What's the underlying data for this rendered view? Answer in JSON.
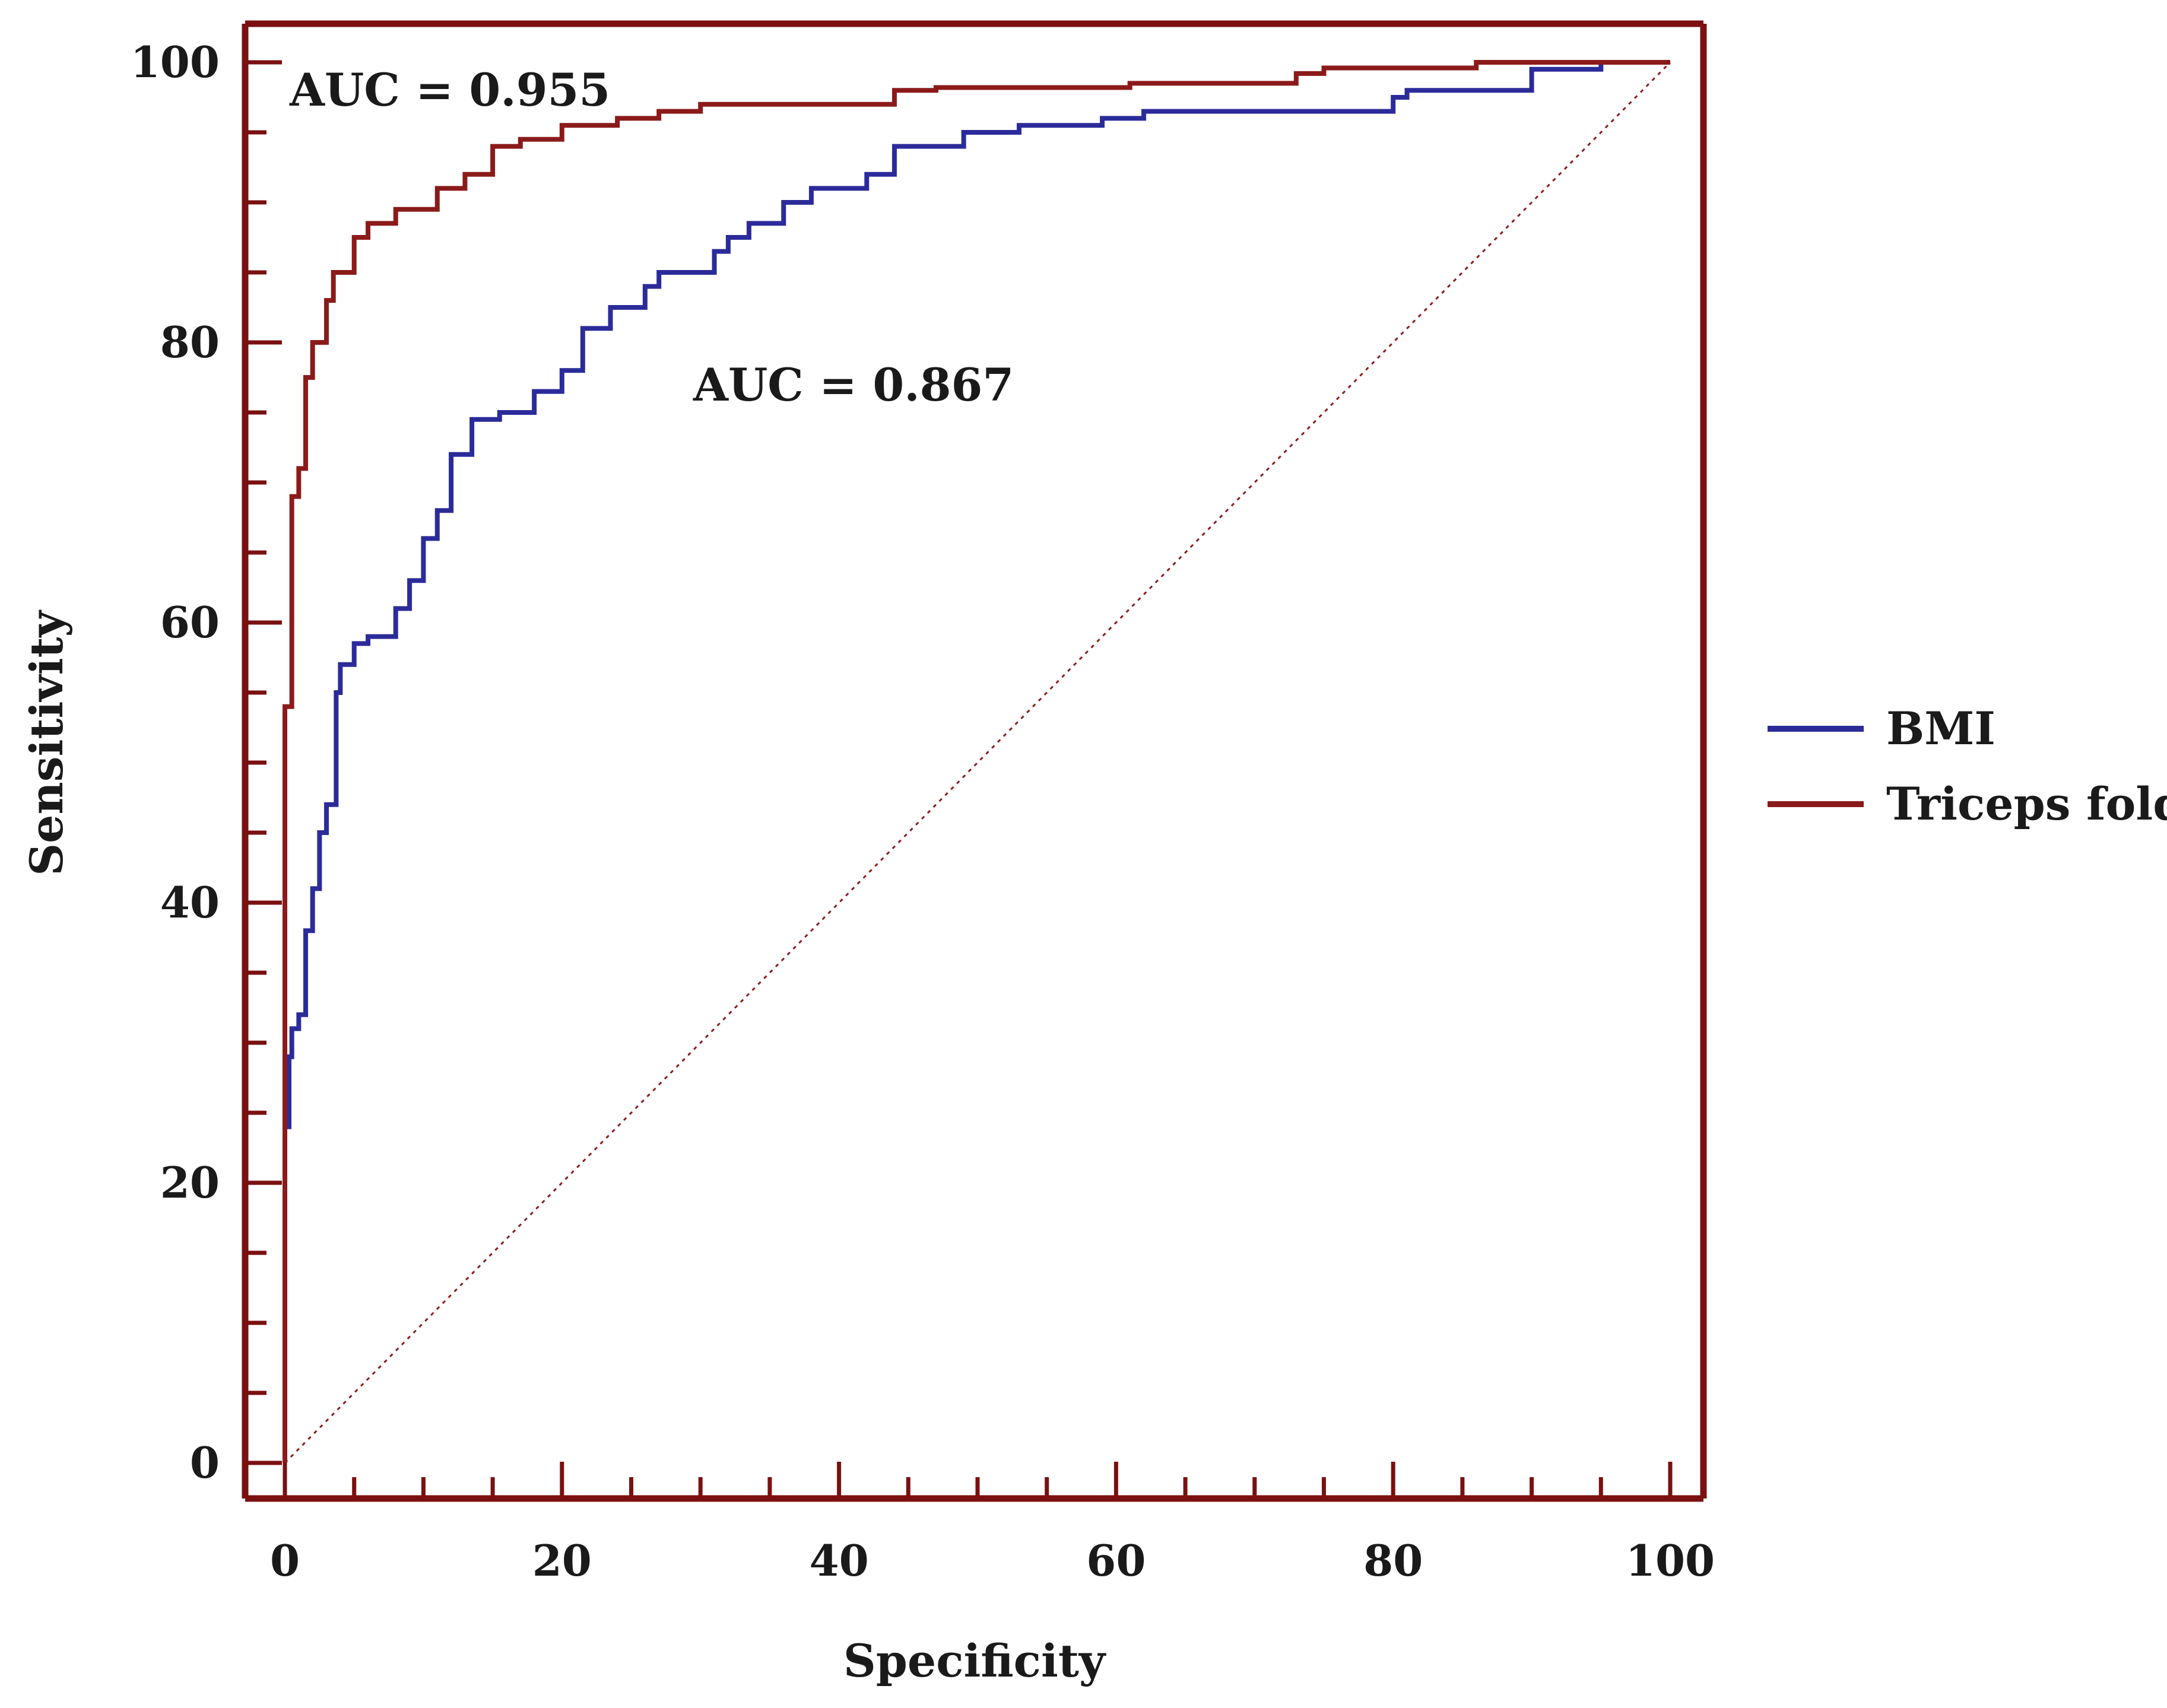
{
  "chart_data": {
    "type": "line",
    "title": "",
    "xlabel": "Specificity",
    "ylabel": "Sensitivity",
    "xlim": [
      0,
      100
    ],
    "ylim": [
      0,
      100
    ],
    "x_ticks": [
      "0",
      "20",
      "40",
      "60",
      "80",
      "100"
    ],
    "y_ticks": [
      "0",
      "20",
      "40",
      "60",
      "80",
      "100"
    ],
    "grid": false,
    "legend_position": "right",
    "reference_line": {
      "type": "diagonal",
      "style": "dotted",
      "color": "#8b1a1a"
    },
    "series": [
      {
        "name": "BMI",
        "color": "#2b2b9a",
        "auc_label": "AUC = 0.867",
        "points": [
          [
            0,
            0
          ],
          [
            0.3,
            24
          ],
          [
            0.5,
            29
          ],
          [
            1,
            31
          ],
          [
            1.5,
            32
          ],
          [
            2,
            38
          ],
          [
            2.5,
            41
          ],
          [
            3,
            45
          ],
          [
            3.7,
            47
          ],
          [
            4,
            55
          ],
          [
            5,
            57
          ],
          [
            6,
            58.5
          ],
          [
            8,
            59
          ],
          [
            9,
            61
          ],
          [
            10,
            63
          ],
          [
            11,
            66
          ],
          [
            12,
            68
          ],
          [
            13.5,
            72
          ],
          [
            15.5,
            74.5
          ],
          [
            18,
            75
          ],
          [
            20,
            76.5
          ],
          [
            21.5,
            78
          ],
          [
            23.5,
            81
          ],
          [
            26,
            82.5
          ],
          [
            27,
            84
          ],
          [
            31,
            85
          ],
          [
            32,
            86.5
          ],
          [
            33.5,
            87.5
          ],
          [
            36,
            88.5
          ],
          [
            38,
            90
          ],
          [
            42,
            91
          ],
          [
            44,
            92
          ],
          [
            49,
            94
          ],
          [
            53,
            95
          ],
          [
            59,
            95.5
          ],
          [
            62,
            96
          ],
          [
            80,
            96.5
          ],
          [
            81,
            97.5
          ],
          [
            90,
            98
          ],
          [
            95,
            99.5
          ],
          [
            100,
            100
          ]
        ]
      },
      {
        "name": "Triceps fold",
        "color": "#8b1a1a",
        "auc_label": "AUC = 0.955",
        "points": [
          [
            0,
            0
          ],
          [
            0,
            44
          ],
          [
            0.5,
            54
          ],
          [
            1,
            69
          ],
          [
            1.5,
            71
          ],
          [
            2,
            77.5
          ],
          [
            3,
            80
          ],
          [
            3.5,
            83
          ],
          [
            5,
            85
          ],
          [
            6,
            87.5
          ],
          [
            8,
            88.5
          ],
          [
            11,
            89.5
          ],
          [
            13,
            91
          ],
          [
            15,
            92
          ],
          [
            17,
            94
          ],
          [
            20,
            94.5
          ],
          [
            24,
            95.5
          ],
          [
            27,
            96
          ],
          [
            30,
            96.5
          ],
          [
            44,
            97
          ],
          [
            47,
            98
          ],
          [
            61,
            98.2
          ],
          [
            73,
            98.5
          ],
          [
            75,
            99.2
          ],
          [
            86,
            99.6
          ],
          [
            100,
            100
          ]
        ]
      }
    ]
  }
}
